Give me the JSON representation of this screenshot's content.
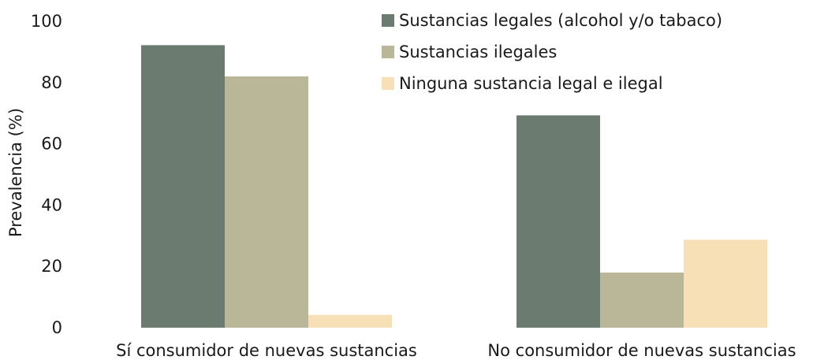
{
  "chart_data": {
    "type": "bar",
    "categories": [
      "Sí consumidor de nuevas sustancias",
      "No consumidor de nuevas sustancias"
    ],
    "series": [
      {
        "name": "Sustancias legales (alcohol y/o tabaco)",
        "values": [
          92.2,
          69.3
        ],
        "color": "#6b7b70"
      },
      {
        "name": "Sustancias ilegales",
        "values": [
          82.0,
          18.0
        ],
        "color": "#bab798"
      },
      {
        "name": "Ninguna sustancia legal e ilegal",
        "values": [
          4.2,
          28.7
        ],
        "color": "#f7e0b6"
      }
    ],
    "ylabel": "Prevalencia (%)",
    "xlabel": "",
    "ylim": [
      0,
      100
    ],
    "yticks": [
      0,
      20,
      40,
      60,
      80,
      100
    ],
    "grid": false,
    "legend_position": "top-right"
  }
}
